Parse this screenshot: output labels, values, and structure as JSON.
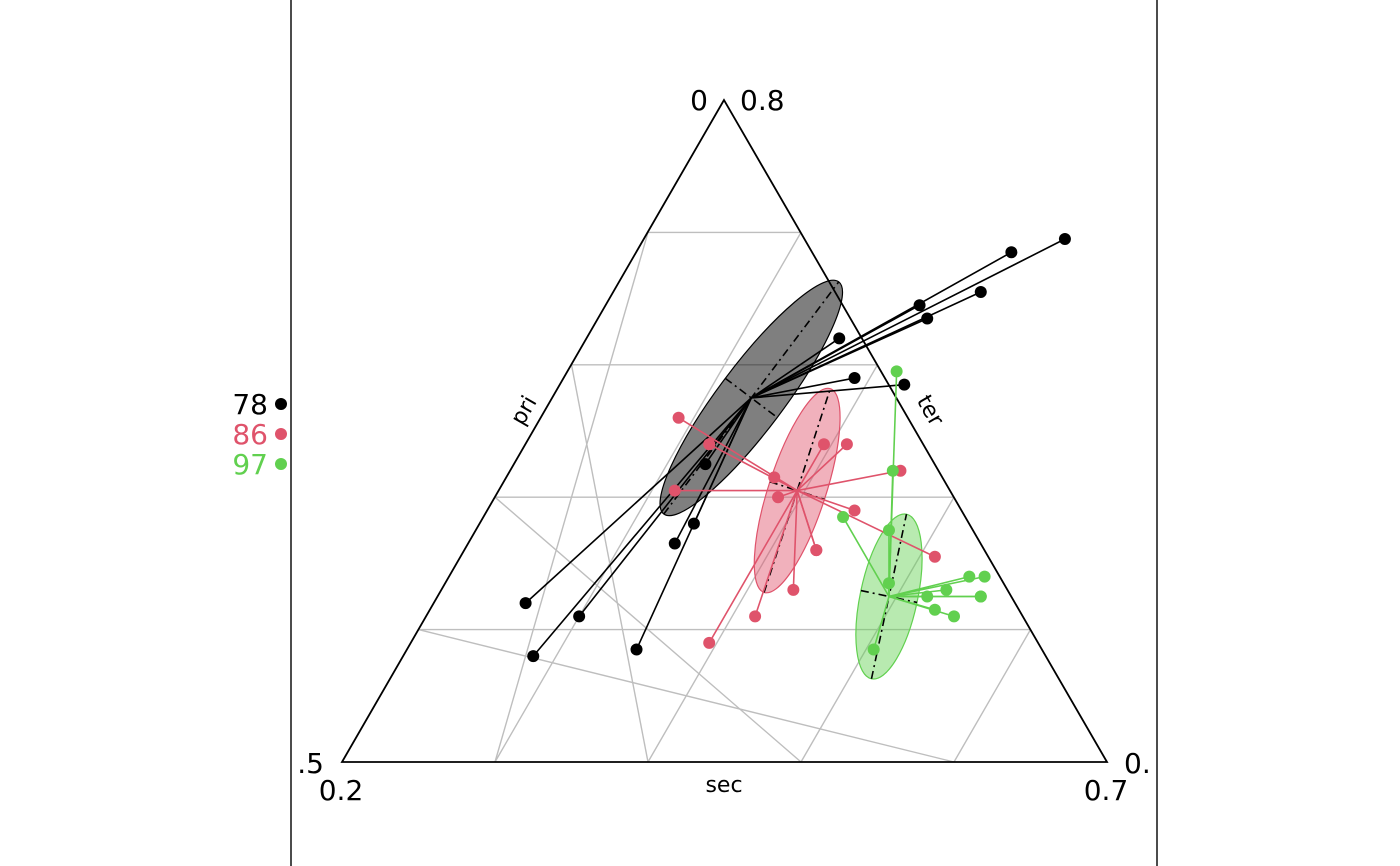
{
  "chart_data": {
    "type": "scatter",
    "title": "",
    "axes": {
      "pri": "pri",
      "sec": "sec",
      "ter": "ter"
    },
    "corner_labels": {
      "top_left": "0",
      "top_right": "0.8",
      "left_outer": ".5",
      "left_inner": "0.2",
      "right_outer": "0.",
      "right_inner": "0.7"
    },
    "grid": true,
    "legend_position": "left",
    "series": [
      {
        "name": "78",
        "color": "#000000",
        "center": [
          0.26,
          0.55
        ],
        "ellipse": {
          "u": [
            0.45,
            0.8
          ],
          "v": [
            0.19,
            0.37
          ],
          "angle_deg": -53,
          "w": 0.38,
          "h": 0.085
        },
        "points": [
          [
            0.2,
            0.22
          ],
          [
            0.3,
            0.17
          ],
          [
            0.28,
            0.36
          ],
          [
            0.25,
            0.45
          ],
          [
            0.27,
            0.33
          ],
          [
            0.45,
            0.57
          ],
          [
            0.43,
            0.67
          ],
          [
            0.17,
            0.16
          ],
          [
            0.12,
            0.24
          ],
          [
            0.38,
            0.58
          ],
          [
            0.48,
            0.71
          ],
          [
            0.41,
            0.69
          ],
          [
            0.33,
            0.64
          ],
          [
            0.49,
            0.77
          ],
          [
            0.55,
            0.79
          ]
        ]
      },
      {
        "name": "86",
        "color": "#df536b",
        "center": [
          0.39,
          0.41
        ],
        "ellipse": {
          "u": [
            0.34,
            0.48
          ],
          "v": [
            0.13,
            0.2
          ],
          "angle_deg": -72,
          "w": 0.28,
          "h": 0.075
        },
        "points": [
          [
            0.39,
            0.18
          ],
          [
            0.46,
            0.26
          ],
          [
            0.18,
            0.52
          ],
          [
            0.23,
            0.41
          ],
          [
            0.24,
            0.48
          ],
          [
            0.51,
            0.44
          ],
          [
            0.42,
            0.48
          ],
          [
            0.48,
            0.38
          ],
          [
            0.46,
            0.32
          ],
          [
            0.62,
            0.31
          ],
          [
            0.39,
            0.48
          ],
          [
            0.35,
            0.43
          ],
          [
            0.46,
            0.32
          ],
          [
            0.37,
            0.4
          ],
          [
            0.43,
            0.22
          ]
        ]
      },
      {
        "name": "97",
        "color": "#61d04f",
        "center": [
          0.59,
          0.25
        ],
        "ellipse": {
          "u": [
            0.59,
            0.32
          ],
          "v": [
            0.55,
            0.26
          ],
          "angle_deg": -78,
          "w": 0.22,
          "h": 0.075
        },
        "points": [
          [
            0.66,
            0.23
          ],
          [
            0.7,
            0.28
          ],
          [
            0.68,
            0.28
          ],
          [
            0.71,
            0.25
          ],
          [
            0.54,
            0.35
          ],
          [
            0.47,
            0.37
          ],
          [
            0.58,
            0.27
          ],
          [
            0.5,
            0.44
          ],
          [
            0.43,
            0.59
          ],
          [
            0.61,
            0.17
          ],
          [
            0.66,
            0.26
          ],
          [
            0.71,
            0.25
          ],
          [
            0.69,
            0.22
          ],
          [
            0.64,
            0.25
          ]
        ]
      }
    ]
  }
}
